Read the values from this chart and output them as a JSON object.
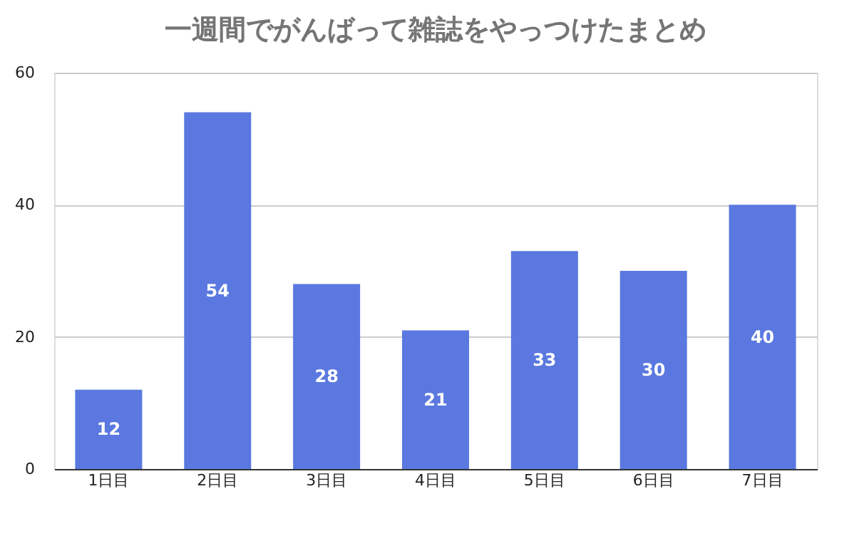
{
  "chart_data": {
    "type": "bar",
    "title": "一週間でがんばって雑誌をやっつけたまとめ",
    "categories": [
      "1日目",
      "2日目",
      "3日目",
      "4日目",
      "5日目",
      "6日目",
      "7日目"
    ],
    "values": [
      12,
      54,
      28,
      21,
      33,
      30,
      40
    ],
    "color": "#5a78df",
    "ylim": [
      0,
      60
    ],
    "yticks": [
      0,
      20,
      40,
      60
    ],
    "grid": "y",
    "data_labels": true
  }
}
